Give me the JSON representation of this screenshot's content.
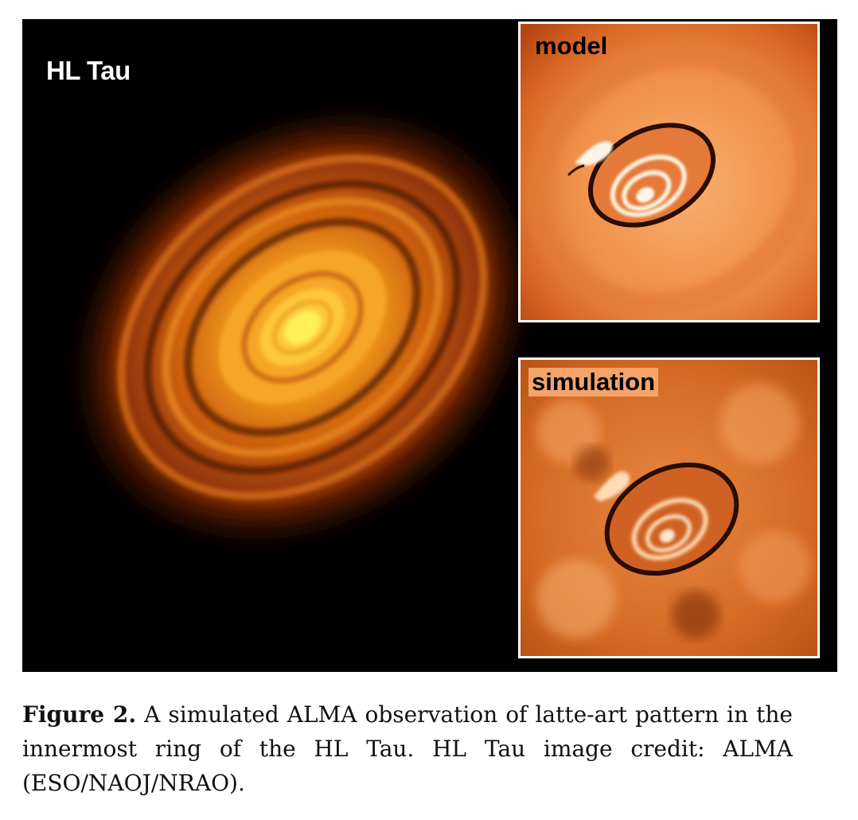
{
  "figure": {
    "main_label": "HL Tau",
    "insets": [
      {
        "label": "model"
      },
      {
        "label": "simulation"
      }
    ]
  },
  "caption": {
    "figure_number": "Figure 2.",
    "text": "A simulated ALMA observation of latte-art pattern in the innermost ring of the HL Tau. HL Tau image credit: ALMA (ESO/NAOJ/NRAO)."
  },
  "colors": {
    "background": "#000000",
    "disk_core": "#ffe040",
    "disk_outer": "#c84a08",
    "inset_bg": "#f0914a"
  }
}
